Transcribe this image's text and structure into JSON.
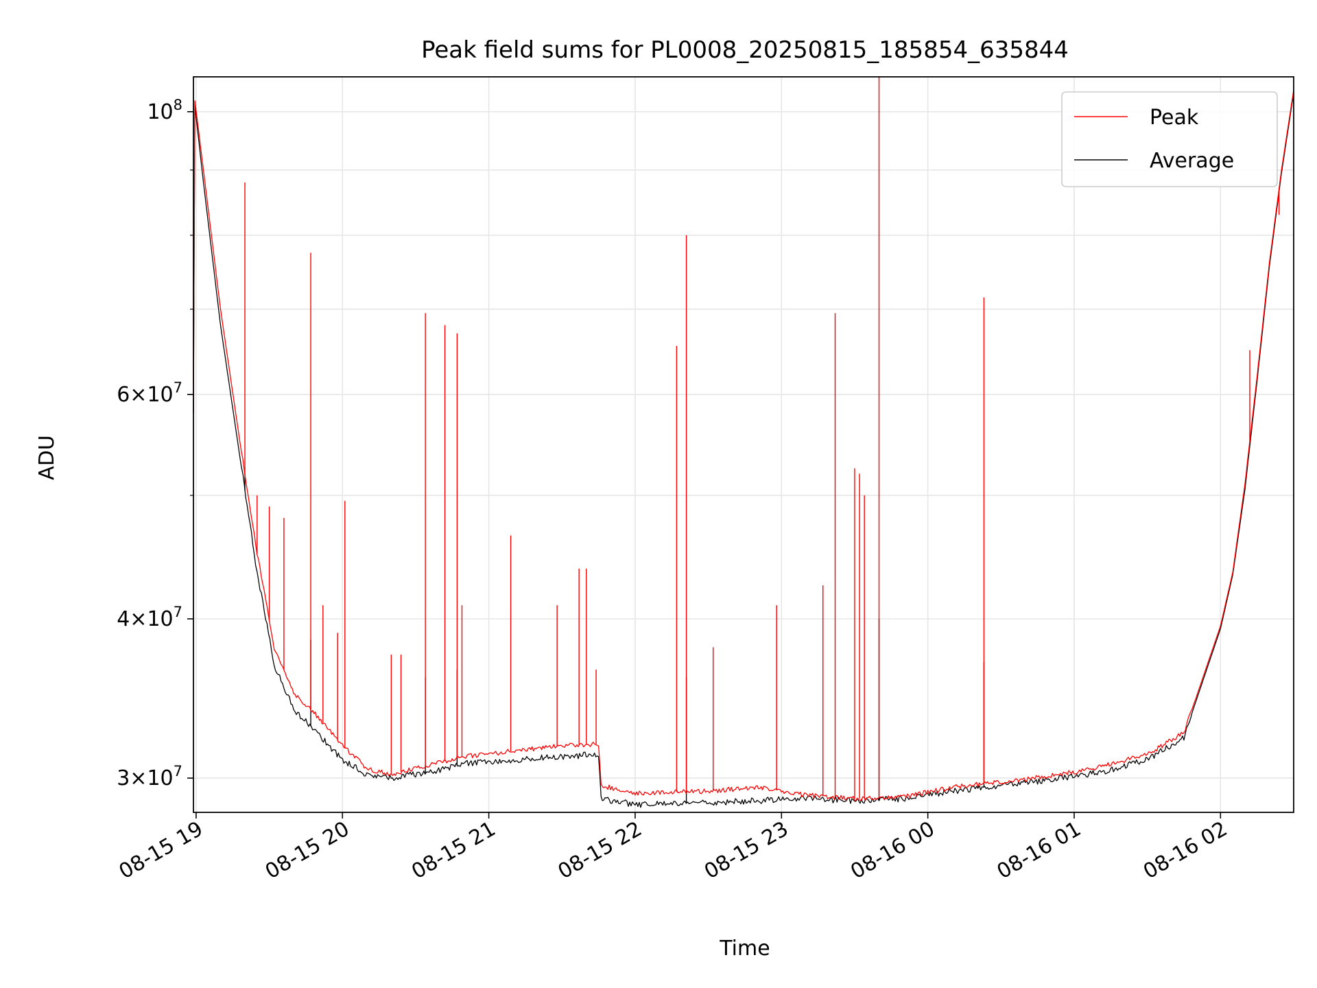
{
  "chart_data": {
    "type": "line",
    "title": "Peak field sums for PL0008_20250815_185854_635844",
    "xlabel": "Time",
    "ylabel": "ADU",
    "yscale": "log",
    "grid": true,
    "legend_position": "top-right",
    "x_range": [
      "2025-08-15 18:58:54",
      "2025-08-16 02:30:00"
    ],
    "ylim": [
      28200000,
      106500000
    ],
    "x_ticks": [
      {
        "time": "2025-08-15 19:00",
        "label": "08-15 19"
      },
      {
        "time": "2025-08-15 20:00",
        "label": "08-15 20"
      },
      {
        "time": "2025-08-15 21:00",
        "label": "08-15 21"
      },
      {
        "time": "2025-08-15 22:00",
        "label": "08-15 22"
      },
      {
        "time": "2025-08-15 23:00",
        "label": "08-15 23"
      },
      {
        "time": "2025-08-16 00:00",
        "label": "08-16 00"
      },
      {
        "time": "2025-08-16 01:00",
        "label": "08-16 01"
      },
      {
        "time": "2025-08-16 02:00",
        "label": "08-16 02"
      }
    ],
    "y_major_ticks": [
      {
        "value": 30000000,
        "mant": "3",
        "exp": "7"
      },
      {
        "value": 40000000,
        "mant": "4",
        "exp": "7"
      },
      {
        "value": 60000000,
        "mant": "6",
        "exp": "7"
      },
      {
        "value": 100000000,
        "mant": "",
        "exp": "8"
      }
    ],
    "y_minor_ticks": [
      50000000,
      70000000,
      80000000,
      90000000
    ],
    "series": [
      {
        "name": "Peak",
        "color": "#ff0000",
        "baseline": [
          [
            "2025-08-15 18:58:54",
            58000000
          ],
          [
            "2025-08-15 18:59:30",
            102000000
          ],
          [
            "2025-08-15 19:03",
            90000000
          ],
          [
            "2025-08-15 19:10",
            70000000
          ],
          [
            "2025-08-15 19:18",
            55000000
          ],
          [
            "2025-08-15 19:25",
            45000000
          ],
          [
            "2025-08-15 19:32",
            38000000
          ],
          [
            "2025-08-15 19:40",
            35000000
          ],
          [
            "2025-08-15 19:50",
            33500000
          ],
          [
            "2025-08-15 20:00",
            31800000
          ],
          [
            "2025-08-15 20:05",
            31200000
          ],
          [
            "2025-08-15 20:10",
            30500000
          ],
          [
            "2025-08-15 20:20",
            30200000
          ],
          [
            "2025-08-15 20:35",
            30700000
          ],
          [
            "2025-08-15 20:50",
            31200000
          ],
          [
            "2025-08-15 21:10",
            31500000
          ],
          [
            "2025-08-15 21:30",
            31800000
          ],
          [
            "2025-08-15 21:45",
            31900000
          ],
          [
            "2025-08-15 21:46",
            29600000
          ],
          [
            "2025-08-15 22:00",
            29200000
          ],
          [
            "2025-08-15 22:30",
            29300000
          ],
          [
            "2025-08-15 22:50",
            29500000
          ],
          [
            "2025-08-15 23:10",
            29100000
          ],
          [
            "2025-08-15 23:30",
            28900000
          ],
          [
            "2025-08-15 23:50",
            29000000
          ],
          [
            "2025-08-16 00:10",
            29500000
          ],
          [
            "2025-08-16 00:30",
            29800000
          ],
          [
            "2025-08-16 00:50",
            30100000
          ],
          [
            "2025-08-16 01:10",
            30600000
          ],
          [
            "2025-08-16 01:30",
            31300000
          ],
          [
            "2025-08-16 01:45",
            32600000
          ],
          [
            "2025-08-16 01:50",
            34700000
          ],
          [
            "2025-08-16 02:00",
            39500000
          ],
          [
            "2025-08-16 02:05",
            43500000
          ],
          [
            "2025-08-16 02:10",
            51000000
          ],
          [
            "2025-08-16 02:15",
            62000000
          ],
          [
            "2025-08-16 02:20",
            76000000
          ],
          [
            "2025-08-16 02:25",
            90000000
          ],
          [
            "2025-08-16 02:30",
            104000000
          ]
        ],
        "spikes": [
          [
            "2025-08-15 19:20",
            88000000
          ],
          [
            "2025-08-15 19:25",
            50000000
          ],
          [
            "2025-08-15 19:30",
            49000000
          ],
          [
            "2025-08-15 19:36",
            48000000
          ],
          [
            "2025-08-15 19:47",
            77500000
          ],
          [
            "2025-08-15 19:52",
            41000000
          ],
          [
            "2025-08-15 19:58",
            39000000
          ],
          [
            "2025-08-15 20:01",
            49500000
          ],
          [
            "2025-08-15 20:20",
            37500000
          ],
          [
            "2025-08-15 20:24",
            37500000
          ],
          [
            "2025-08-15 20:34",
            69500000
          ],
          [
            "2025-08-15 20:42",
            68000000
          ],
          [
            "2025-08-15 20:47",
            67000000
          ],
          [
            "2025-08-15 20:49",
            41000000
          ],
          [
            "2025-08-15 21:09",
            46500000
          ],
          [
            "2025-08-15 21:28",
            41000000
          ],
          [
            "2025-08-15 21:37",
            43800000
          ],
          [
            "2025-08-15 21:40",
            43800000
          ],
          [
            "2025-08-15 21:44",
            36500000
          ],
          [
            "2025-08-15 22:17",
            65500000
          ],
          [
            "2025-08-15 22:21",
            80000000
          ],
          [
            "2025-08-15 22:32",
            38000000
          ],
          [
            "2025-08-15 22:58",
            41000000
          ],
          [
            "2025-08-15 23:17",
            42500000
          ],
          [
            "2025-08-15 23:22",
            69500000
          ],
          [
            "2025-08-15 23:30",
            52500000
          ],
          [
            "2025-08-15 23:32",
            52000000
          ],
          [
            "2025-08-15 23:34",
            50000000
          ],
          [
            "2025-08-15 23:40",
            108000000
          ],
          [
            "2025-08-16 00:23",
            71500000
          ],
          [
            "2025-08-16 02:12",
            65000000
          ],
          [
            "2025-08-16 02:24",
            83000000
          ]
        ]
      },
      {
        "name": "Average",
        "color": "#000000",
        "baseline": [
          [
            "2025-08-15 18:58:54",
            58000000
          ],
          [
            "2025-08-15 18:59:30",
            101000000
          ],
          [
            "2025-08-15 19:03",
            88000000
          ],
          [
            "2025-08-15 19:10",
            68000000
          ],
          [
            "2025-08-15 19:18",
            53500000
          ],
          [
            "2025-08-15 19:25",
            43500000
          ],
          [
            "2025-08-15 19:32",
            36800000
          ],
          [
            "2025-08-15 19:40",
            34000000
          ],
          [
            "2025-08-15 19:50",
            32500000
          ],
          [
            "2025-08-15 20:00",
            31000000
          ],
          [
            "2025-08-15 20:05",
            30600000
          ],
          [
            "2025-08-15 20:10",
            30200000
          ],
          [
            "2025-08-15 20:20",
            30000000
          ],
          [
            "2025-08-15 20:35",
            30300000
          ],
          [
            "2025-08-15 20:50",
            30800000
          ],
          [
            "2025-08-15 21:10",
            31000000
          ],
          [
            "2025-08-15 21:30",
            31200000
          ],
          [
            "2025-08-15 21:45",
            31300000
          ],
          [
            "2025-08-15 21:46",
            28900000
          ],
          [
            "2025-08-15 22:00",
            28600000
          ],
          [
            "2025-08-15 22:30",
            28700000
          ],
          [
            "2025-08-15 22:50",
            28800000
          ],
          [
            "2025-08-15 23:10",
            28900000
          ],
          [
            "2025-08-15 23:30",
            28800000
          ],
          [
            "2025-08-15 23:50",
            28900000
          ],
          [
            "2025-08-16 00:10",
            29300000
          ],
          [
            "2025-08-16 00:30",
            29600000
          ],
          [
            "2025-08-16 00:50",
            29900000
          ],
          [
            "2025-08-16 01:10",
            30300000
          ],
          [
            "2025-08-16 01:30",
            31000000
          ],
          [
            "2025-08-16 01:45",
            32300000
          ],
          [
            "2025-08-16 01:50",
            34500000
          ],
          [
            "2025-08-16 02:00",
            39300000
          ],
          [
            "2025-08-16 02:05",
            43300000
          ],
          [
            "2025-08-16 02:10",
            50500000
          ],
          [
            "2025-08-16 02:15",
            61500000
          ],
          [
            "2025-08-16 02:20",
            75500000
          ],
          [
            "2025-08-16 02:25",
            89500000
          ],
          [
            "2025-08-16 02:30",
            103500000
          ]
        ],
        "spikes": [
          [
            "2025-08-15 19:20",
            52000000
          ],
          [
            "2025-08-15 19:47",
            38500000
          ],
          [
            "2025-08-15 20:34",
            36000000
          ],
          [
            "2025-08-15 20:47",
            36500000
          ],
          [
            "2025-08-15 22:21",
            36000000
          ],
          [
            "2025-08-15 23:40",
            40000000
          ],
          [
            "2025-08-16 00:23",
            37000000
          ]
        ]
      }
    ]
  }
}
